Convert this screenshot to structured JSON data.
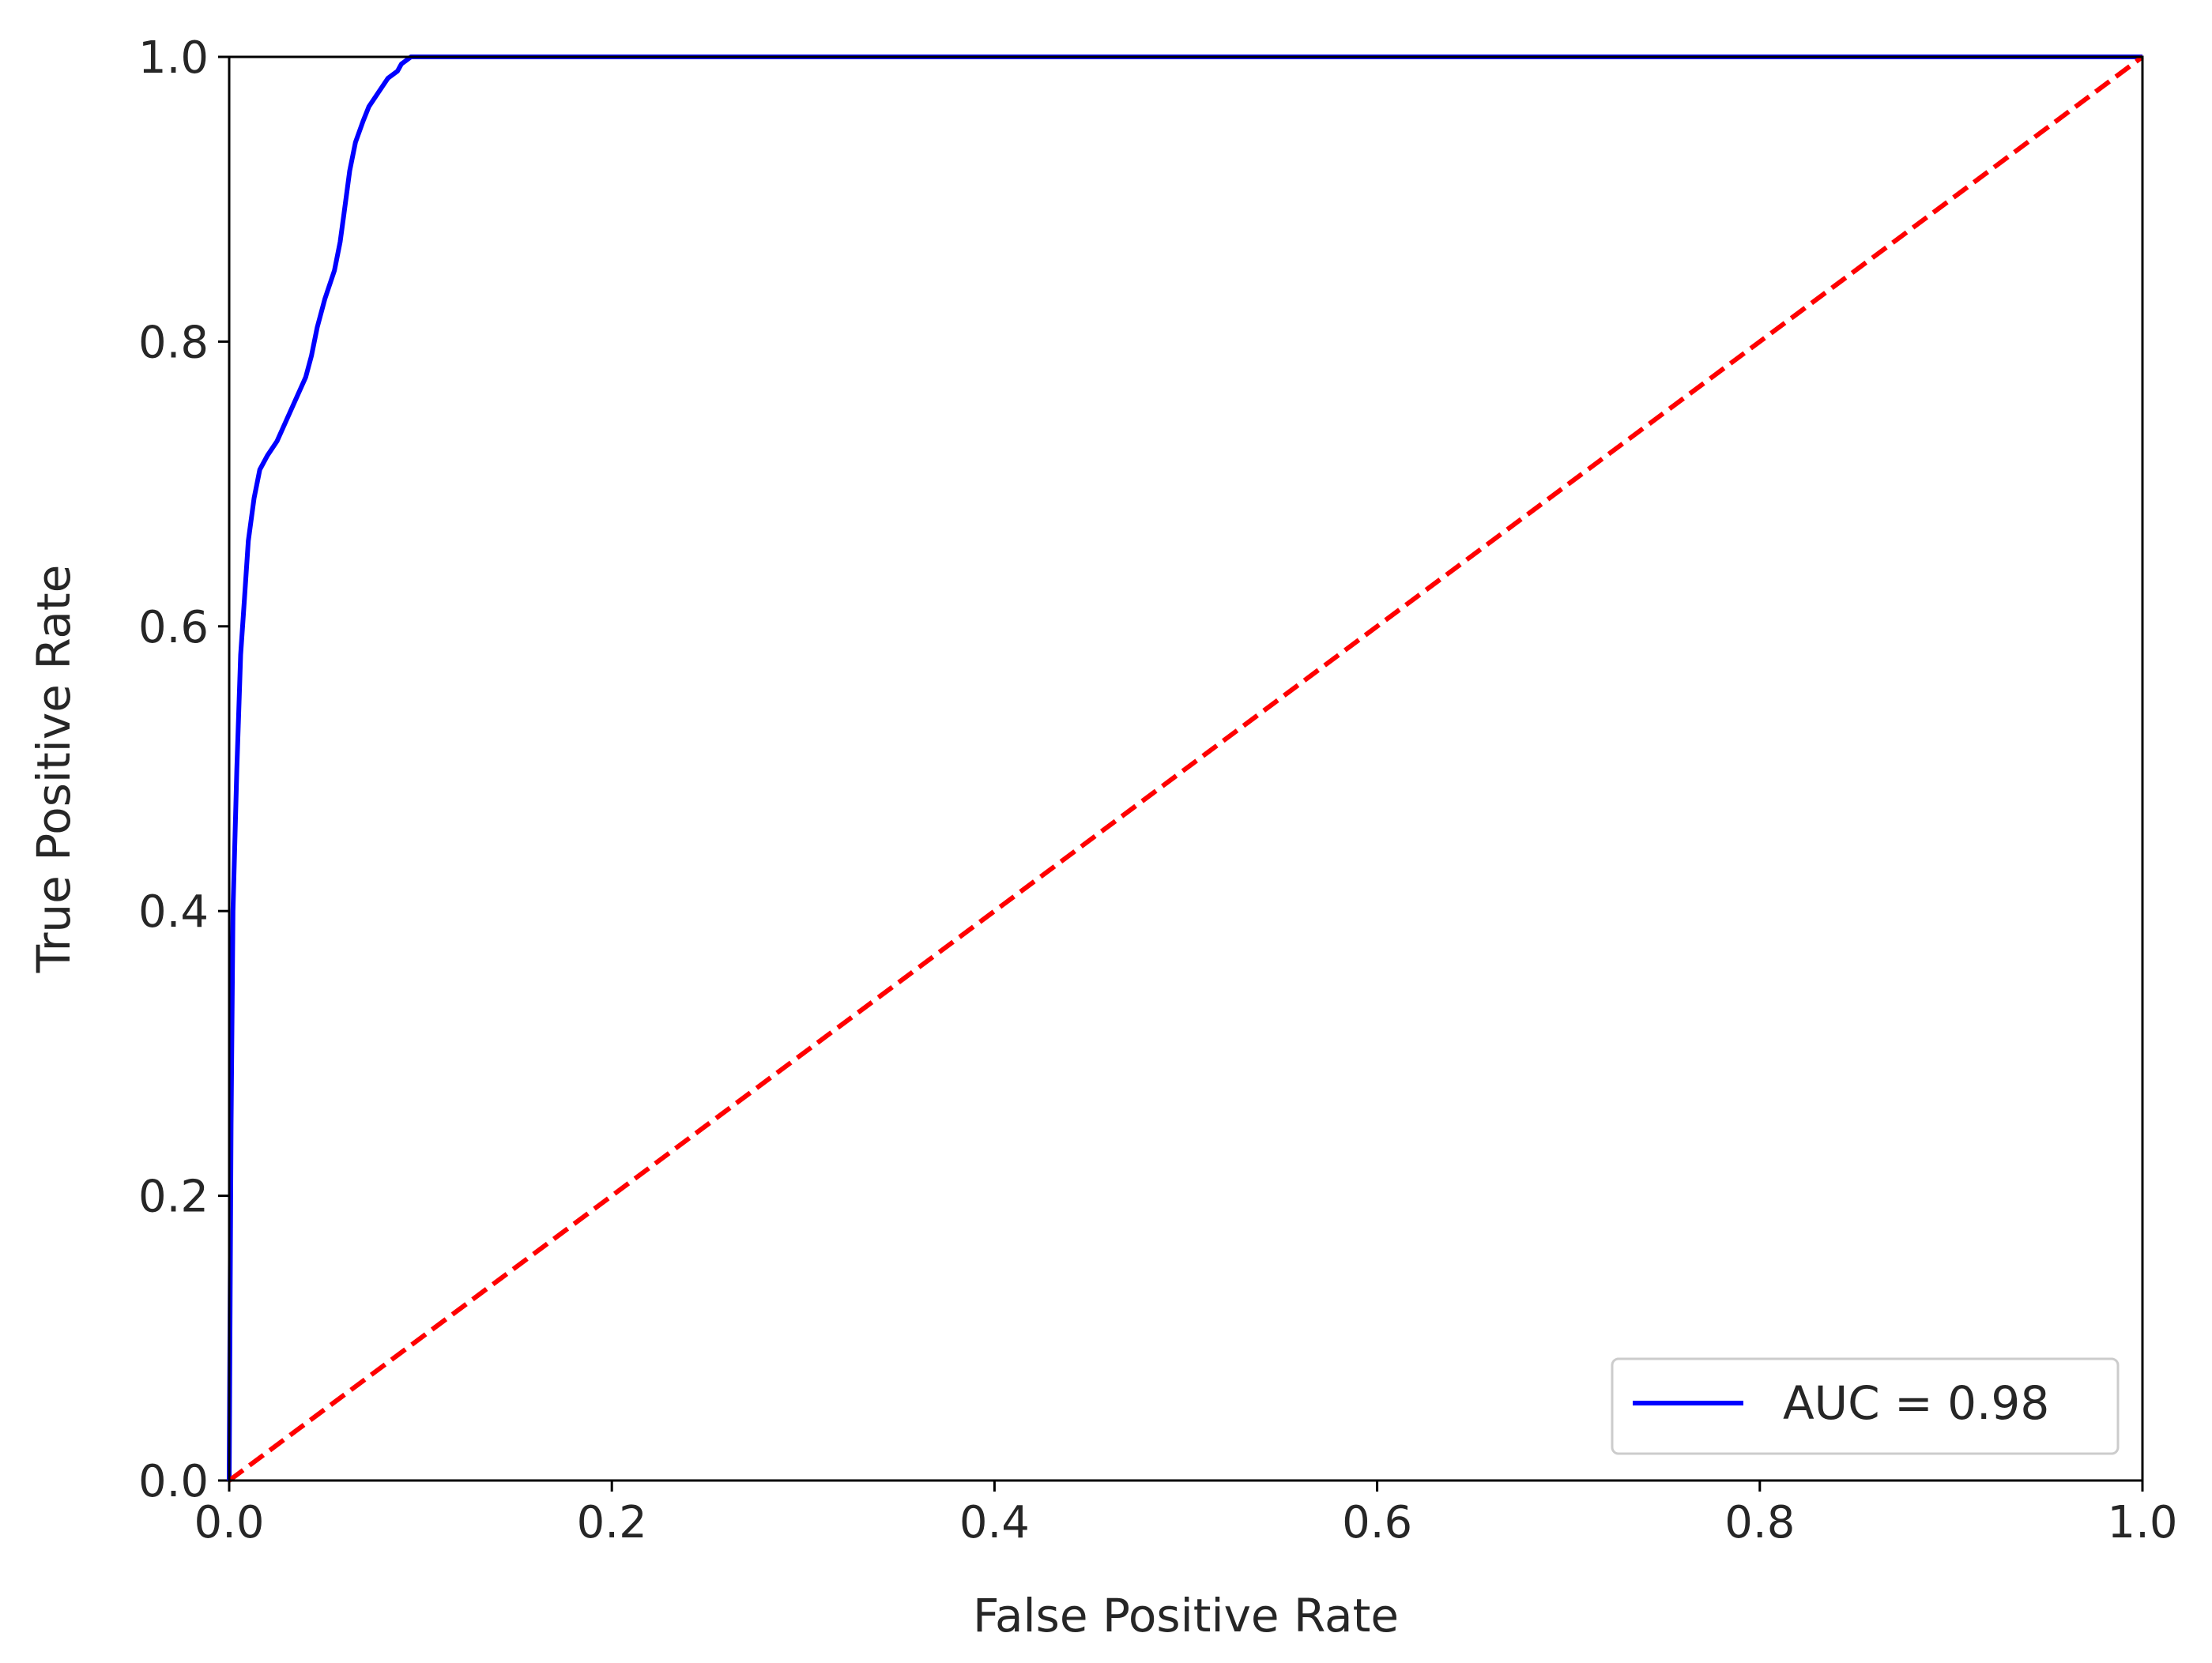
{
  "chart_data": {
    "type": "line",
    "title": "",
    "xlabel": "False Positive Rate",
    "ylabel": "True Positive Rate",
    "xlim": [
      0.0,
      1.0
    ],
    "ylim": [
      0.0,
      1.0
    ],
    "x_ticks": [
      "0.0",
      "0.2",
      "0.4",
      "0.6",
      "0.8",
      "1.0"
    ],
    "y_ticks": [
      "0.0",
      "0.2",
      "0.4",
      "0.6",
      "0.8",
      "1.0"
    ],
    "grid": false,
    "legend_position": "lower-right",
    "series": [
      {
        "name": "AUC = 0.98",
        "color": "#0000ff",
        "style": "solid",
        "x": [
          0.0,
          0.001,
          0.002,
          0.004,
          0.006,
          0.008,
          0.01,
          0.013,
          0.016,
          0.02,
          0.025,
          0.03,
          0.035,
          0.04,
          0.043,
          0.046,
          0.05,
          0.055,
          0.058,
          0.06,
          0.063,
          0.066,
          0.07,
          0.073,
          0.078,
          0.083,
          0.088,
          0.09,
          0.093,
          0.095,
          0.1,
          0.11,
          0.12,
          0.2,
          0.4,
          0.6,
          0.8,
          1.0
        ],
        "y": [
          0.0,
          0.25,
          0.4,
          0.5,
          0.58,
          0.62,
          0.66,
          0.69,
          0.71,
          0.72,
          0.73,
          0.745,
          0.76,
          0.775,
          0.79,
          0.81,
          0.83,
          0.85,
          0.87,
          0.89,
          0.92,
          0.94,
          0.955,
          0.965,
          0.975,
          0.985,
          0.99,
          0.995,
          0.998,
          1.0,
          1.0,
          1.0,
          1.0,
          1.0,
          1.0,
          1.0,
          1.0,
          1.0
        ]
      },
      {
        "name": "",
        "color": "#ff0000",
        "style": "dashed",
        "x": [
          0.0,
          1.0
        ],
        "y": [
          0.0,
          1.0
        ]
      }
    ]
  }
}
